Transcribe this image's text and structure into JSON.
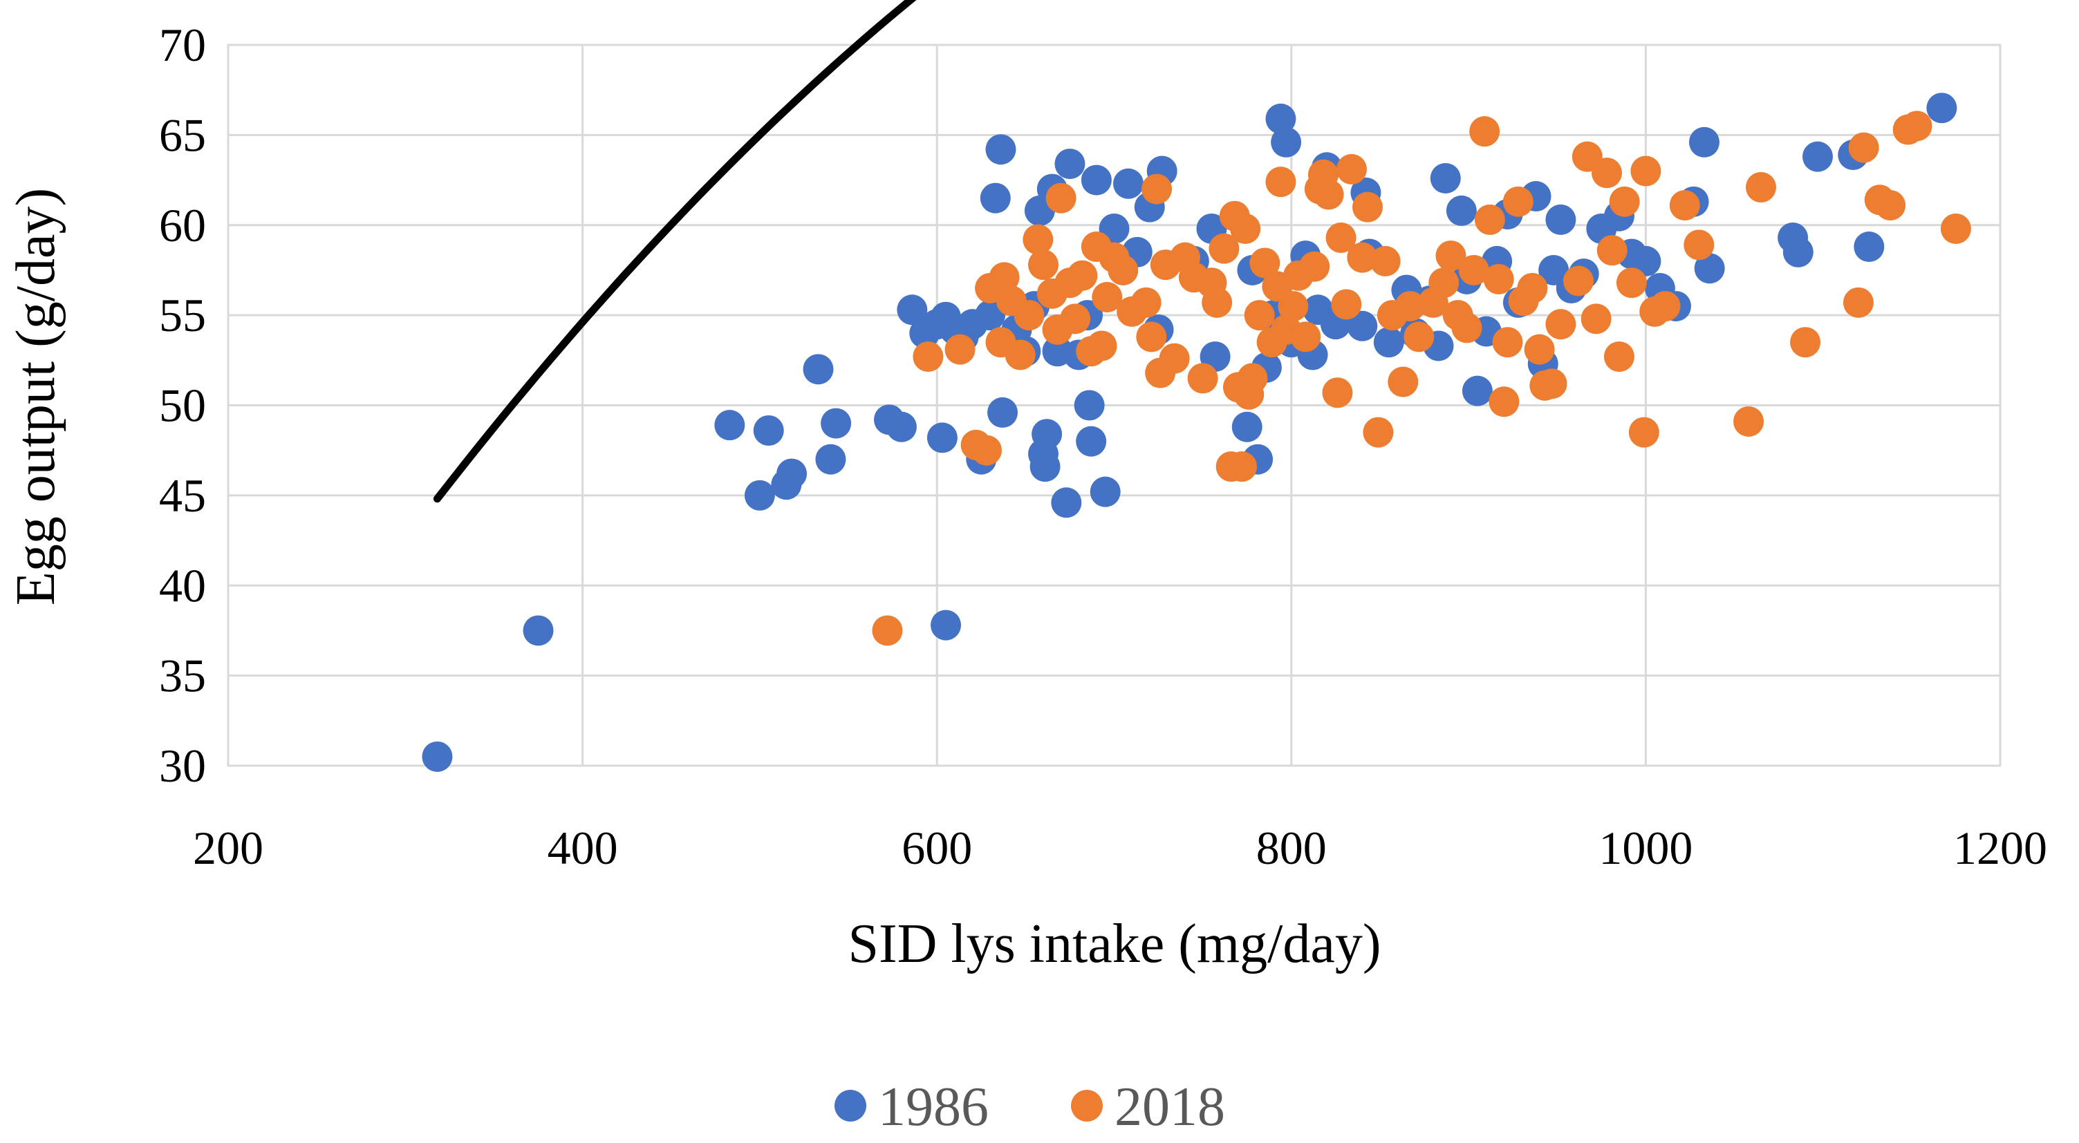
{
  "chart_data": {
    "type": "scatter",
    "title": "",
    "xlabel": "SID lys intake (mg/day)",
    "ylabel": "Egg output (g/day)",
    "xlim": [
      200,
      1200
    ],
    "ylim": [
      30,
      70
    ],
    "xticks": [
      "200",
      "400",
      "600",
      "800",
      "1000",
      "1200"
    ],
    "yticks": [
      "30",
      "35",
      "40",
      "45",
      "50",
      "55",
      "60",
      "65",
      "70"
    ],
    "grid": true,
    "legend_position": "bottom",
    "colors": {
      "s1986": "#4472C4",
      "s2018": "#ED7D31",
      "trend": "#000000"
    },
    "series": [
      {
        "name": "1986",
        "points": [
          [
            318,
            30.5
          ],
          [
            375,
            37.5
          ],
          [
            483,
            48.9
          ],
          [
            500,
            45.0
          ],
          [
            505,
            48.6
          ],
          [
            515,
            45.6
          ],
          [
            518,
            46.2
          ],
          [
            533,
            52.0
          ],
          [
            540,
            47.0
          ],
          [
            543,
            49.0
          ],
          [
            573,
            49.2
          ],
          [
            580,
            48.8
          ],
          [
            586,
            55.3
          ],
          [
            593,
            54.0
          ],
          [
            600,
            54.5
          ],
          [
            603,
            48.2
          ],
          [
            605,
            54.9
          ],
          [
            605,
            37.8
          ],
          [
            610,
            54.2
          ],
          [
            615,
            53.8
          ],
          [
            620,
            54.5
          ],
          [
            625,
            47.0
          ],
          [
            630,
            55.0
          ],
          [
            633,
            61.5
          ],
          [
            636,
            64.2
          ],
          [
            637,
            49.6
          ],
          [
            645,
            54.2
          ],
          [
            650,
            53.0
          ],
          [
            655,
            55.5
          ],
          [
            658,
            60.8
          ],
          [
            660,
            47.3
          ],
          [
            661,
            46.6
          ],
          [
            662,
            48.4
          ],
          [
            665,
            62.0
          ],
          [
            668,
            53.0
          ],
          [
            673,
            44.6
          ],
          [
            675,
            63.4
          ],
          [
            680,
            52.8
          ],
          [
            685,
            55.0
          ],
          [
            686,
            50.0
          ],
          [
            687,
            48.0
          ],
          [
            690,
            62.5
          ],
          [
            695,
            45.2
          ],
          [
            700,
            59.8
          ],
          [
            708,
            62.3
          ],
          [
            713,
            58.5
          ],
          [
            720,
            61.0
          ],
          [
            725,
            54.2
          ],
          [
            727,
            63.0
          ],
          [
            745,
            58.0
          ],
          [
            755,
            59.8
          ],
          [
            757,
            52.7
          ],
          [
            775,
            48.8
          ],
          [
            778,
            57.5
          ],
          [
            781,
            47.0
          ],
          [
            786,
            52.1
          ],
          [
            790,
            55.0
          ],
          [
            794,
            65.9
          ],
          [
            797,
            64.6
          ],
          [
            800,
            53.5
          ],
          [
            808,
            58.3
          ],
          [
            812,
            52.8
          ],
          [
            815,
            55.3
          ],
          [
            820,
            63.2
          ],
          [
            825,
            54.5
          ],
          [
            840,
            54.4
          ],
          [
            842,
            61.8
          ],
          [
            844,
            58.4
          ],
          [
            855,
            53.5
          ],
          [
            865,
            56.4
          ],
          [
            870,
            54.0
          ],
          [
            878,
            55.8
          ],
          [
            883,
            53.3
          ],
          [
            887,
            62.6
          ],
          [
            896,
            60.8
          ],
          [
            899,
            57.0
          ],
          [
            905,
            50.8
          ],
          [
            910,
            54.1
          ],
          [
            916,
            58.0
          ],
          [
            922,
            60.6
          ],
          [
            928,
            55.7
          ],
          [
            938,
            61.6
          ],
          [
            942,
            52.3
          ],
          [
            948,
            57.5
          ],
          [
            952,
            60.3
          ],
          [
            958,
            56.5
          ],
          [
            965,
            57.3
          ],
          [
            975,
            59.8
          ],
          [
            985,
            60.5
          ],
          [
            992,
            58.4
          ],
          [
            1000,
            58.0
          ],
          [
            1008,
            56.5
          ],
          [
            1017,
            55.5
          ],
          [
            1027,
            61.3
          ],
          [
            1033,
            64.6
          ],
          [
            1036,
            57.6
          ],
          [
            1083,
            59.3
          ],
          [
            1086,
            58.5
          ],
          [
            1097,
            63.8
          ],
          [
            1117,
            63.9
          ],
          [
            1126,
            58.8
          ],
          [
            1167,
            66.5
          ]
        ]
      },
      {
        "name": "2018",
        "points": [
          [
            572,
            37.5
          ],
          [
            595,
            52.7
          ],
          [
            613,
            53.1
          ],
          [
            622,
            47.8
          ],
          [
            628,
            47.5
          ],
          [
            630,
            56.5
          ],
          [
            636,
            53.5
          ],
          [
            638,
            57.1
          ],
          [
            642,
            55.8
          ],
          [
            647,
            52.8
          ],
          [
            652,
            55.0
          ],
          [
            657,
            59.2
          ],
          [
            660,
            57.8
          ],
          [
            665,
            56.2
          ],
          [
            668,
            54.2
          ],
          [
            670,
            61.5
          ],
          [
            675,
            56.8
          ],
          [
            678,
            54.8
          ],
          [
            682,
            57.2
          ],
          [
            687,
            53.0
          ],
          [
            690,
            58.8
          ],
          [
            693,
            53.3
          ],
          [
            696,
            56.0
          ],
          [
            700,
            58.2
          ],
          [
            705,
            57.5
          ],
          [
            710,
            55.2
          ],
          [
            718,
            55.7
          ],
          [
            721,
            53.8
          ],
          [
            724,
            62.0
          ],
          [
            726,
            51.8
          ],
          [
            729,
            57.8
          ],
          [
            734,
            52.6
          ],
          [
            740,
            58.2
          ],
          [
            745,
            57.1
          ],
          [
            750,
            51.5
          ],
          [
            755,
            56.8
          ],
          [
            758,
            55.7
          ],
          [
            762,
            58.7
          ],
          [
            766,
            46.6
          ],
          [
            768,
            60.5
          ],
          [
            770,
            51.0
          ],
          [
            772,
            46.6
          ],
          [
            774,
            59.8
          ],
          [
            776,
            50.6
          ],
          [
            778,
            51.5
          ],
          [
            782,
            55.0
          ],
          [
            785,
            57.9
          ],
          [
            789,
            53.5
          ],
          [
            792,
            56.6
          ],
          [
            794,
            62.4
          ],
          [
            797,
            54.2
          ],
          [
            801,
            55.5
          ],
          [
            804,
            57.2
          ],
          [
            808,
            53.8
          ],
          [
            813,
            57.7
          ],
          [
            816,
            62.0
          ],
          [
            818,
            62.8
          ],
          [
            821,
            61.7
          ],
          [
            826,
            50.7
          ],
          [
            828,
            59.3
          ],
          [
            831,
            55.6
          ],
          [
            834,
            63.1
          ],
          [
            840,
            58.2
          ],
          [
            843,
            61.0
          ],
          [
            849,
            48.5
          ],
          [
            853,
            58.0
          ],
          [
            857,
            55.0
          ],
          [
            863,
            51.3
          ],
          [
            867,
            55.5
          ],
          [
            872,
            53.8
          ],
          [
            880,
            55.7
          ],
          [
            886,
            56.8
          ],
          [
            890,
            58.3
          ],
          [
            894,
            55.0
          ],
          [
            899,
            54.3
          ],
          [
            903,
            57.5
          ],
          [
            909,
            65.2
          ],
          [
            912,
            60.3
          ],
          [
            917,
            57.0
          ],
          [
            920,
            50.2
          ],
          [
            922,
            53.5
          ],
          [
            928,
            61.3
          ],
          [
            931,
            55.8
          ],
          [
            936,
            56.5
          ],
          [
            940,
            53.1
          ],
          [
            943,
            51.1
          ],
          [
            947,
            51.2
          ],
          [
            952,
            54.5
          ],
          [
            962,
            56.9
          ],
          [
            967,
            63.8
          ],
          [
            972,
            54.8
          ],
          [
            978,
            62.9
          ],
          [
            981,
            58.6
          ],
          [
            985,
            52.7
          ],
          [
            988,
            61.3
          ],
          [
            992,
            56.8
          ],
          [
            999,
            48.5
          ],
          [
            1000,
            63.0
          ],
          [
            1005,
            55.2
          ],
          [
            1011,
            55.5
          ],
          [
            1022,
            61.1
          ],
          [
            1030,
            58.9
          ],
          [
            1058,
            49.1
          ],
          [
            1065,
            62.1
          ],
          [
            1090,
            53.5
          ],
          [
            1120,
            55.7
          ],
          [
            1123,
            64.3
          ],
          [
            1132,
            61.4
          ],
          [
            1138,
            61.1
          ],
          [
            1148,
            65.3
          ],
          [
            1153,
            65.5
          ],
          [
            1175,
            59.8
          ]
        ]
      }
    ],
    "trendline": {
      "type": "quadratic",
      "x_range": [
        318,
        1167
      ],
      "coefficients": [
        -8.6094e-05,
        0.18141,
        -4.1727
      ]
    }
  }
}
